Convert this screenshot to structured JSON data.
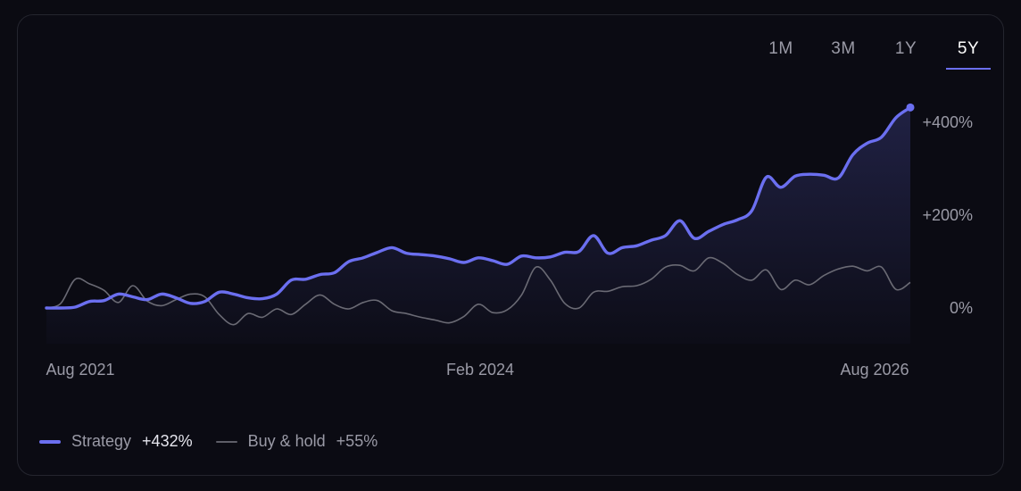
{
  "tabs": [
    {
      "label": "1M",
      "active": false
    },
    {
      "label": "3M",
      "active": false
    },
    {
      "label": "1Y",
      "active": false
    },
    {
      "label": "5Y",
      "active": true
    }
  ],
  "legend": [
    {
      "name": "Strategy",
      "value": "+432%"
    },
    {
      "name": "Buy & hold",
      "value": "+55%"
    }
  ],
  "chart_data": {
    "type": "line",
    "title": "",
    "xlabel": "",
    "ylabel": "",
    "x_ticks": [
      "Aug 2021",
      "Feb 2024",
      "Aug 2026"
    ],
    "y_ticks": [
      "+400%",
      "+200%",
      "0%"
    ],
    "y_tick_values": [
      400,
      200,
      0
    ],
    "xlim": [
      0,
      60
    ],
    "ylim": [
      -70,
      440
    ],
    "grid": false,
    "legend_position": "bottom-left",
    "colors": {
      "strategy": "#6b6ff0",
      "buy_hold": "#6a6a74"
    },
    "series": [
      {
        "name": "Strategy",
        "values": [
          0,
          0,
          2,
          14,
          16,
          30,
          24,
          18,
          30,
          22,
          10,
          14,
          34,
          30,
          22,
          20,
          30,
          60,
          62,
          72,
          76,
          100,
          108,
          120,
          130,
          118,
          115,
          112,
          106,
          98,
          108,
          102,
          94,
          112,
          108,
          110,
          120,
          122,
          156,
          118,
          130,
          134,
          146,
          156,
          188,
          150,
          165,
          180,
          190,
          210,
          282,
          260,
          284,
          288,
          286,
          280,
          330,
          355,
          368,
          410,
          432
        ]
      },
      {
        "name": "Buy & hold",
        "values": [
          0,
          10,
          62,
          52,
          38,
          12,
          48,
          15,
          5,
          18,
          30,
          24,
          -14,
          -36,
          -12,
          -20,
          -2,
          -14,
          8,
          28,
          8,
          -2,
          12,
          16,
          -6,
          -12,
          -20,
          -26,
          -32,
          -18,
          8,
          -10,
          -4,
          28,
          88,
          60,
          10,
          0,
          34,
          36,
          46,
          48,
          62,
          88,
          92,
          80,
          108,
          96,
          72,
          60,
          82,
          40,
          60,
          50,
          70,
          84,
          90,
          80,
          88,
          40,
          55
        ]
      }
    ]
  }
}
